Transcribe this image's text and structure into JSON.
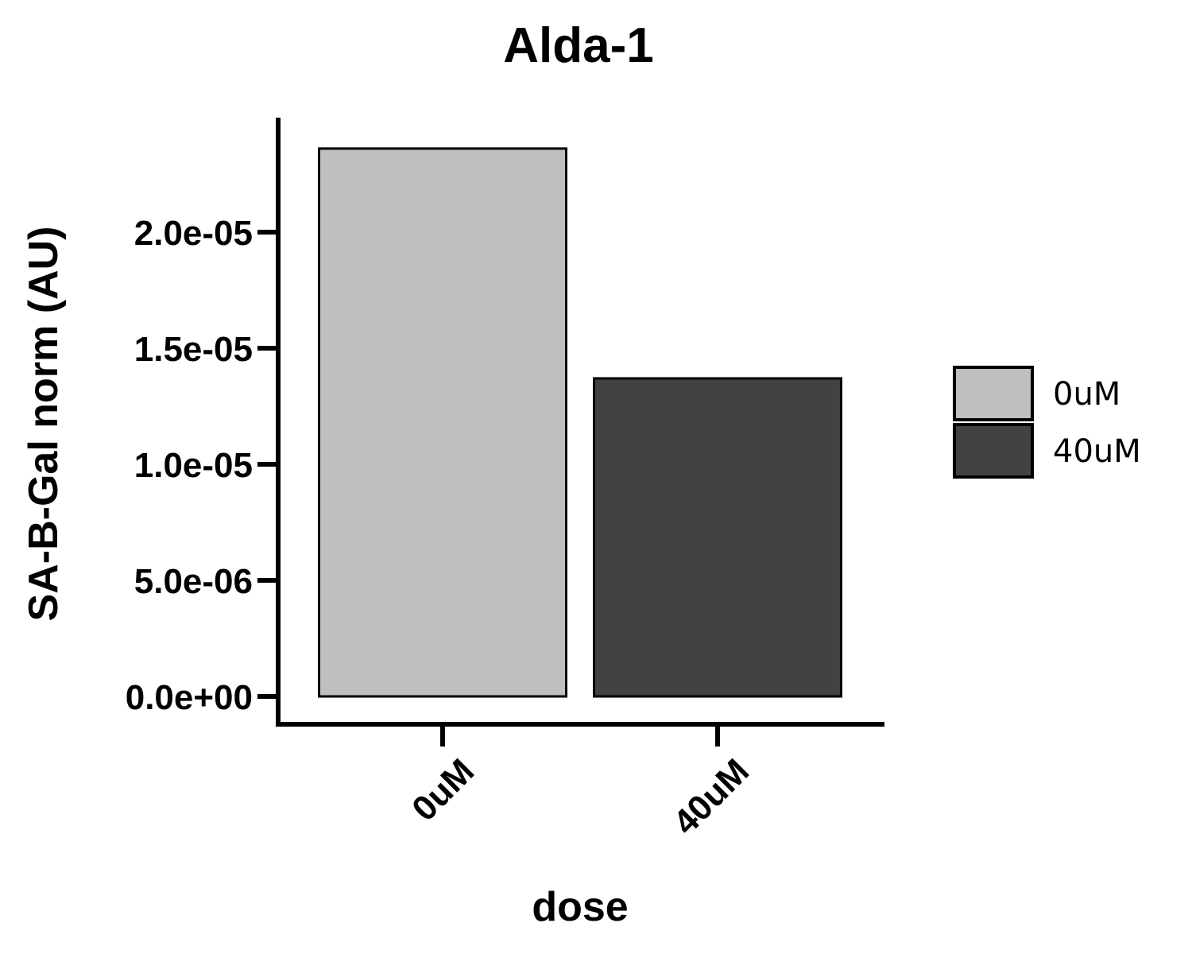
{
  "chart_data": {
    "type": "bar",
    "title": "Alda-1",
    "xlabel": "dose",
    "ylabel": "SA-B-Gal norm (AU)",
    "categories": [
      "0uM",
      "40uM"
    ],
    "values": [
      2.36e-05,
      1.37e-05
    ],
    "colors": [
      "#bfbfbf",
      "#424242"
    ],
    "ylim": [
      0,
      2.6e-05
    ],
    "yticks": [
      0,
      5e-06,
      1e-05,
      1.5e-05,
      2e-05
    ],
    "ytick_labels": [
      "0.0e+00",
      "5.0e-06",
      "1.0e-05",
      "1.5e-05",
      "2.0e-05"
    ],
    "legend": {
      "placement": "right",
      "entries": [
        {
          "label": "0uM",
          "color": "#bfbfbf"
        },
        {
          "label": "40uM",
          "color": "#424242"
        }
      ]
    },
    "grid": false
  }
}
